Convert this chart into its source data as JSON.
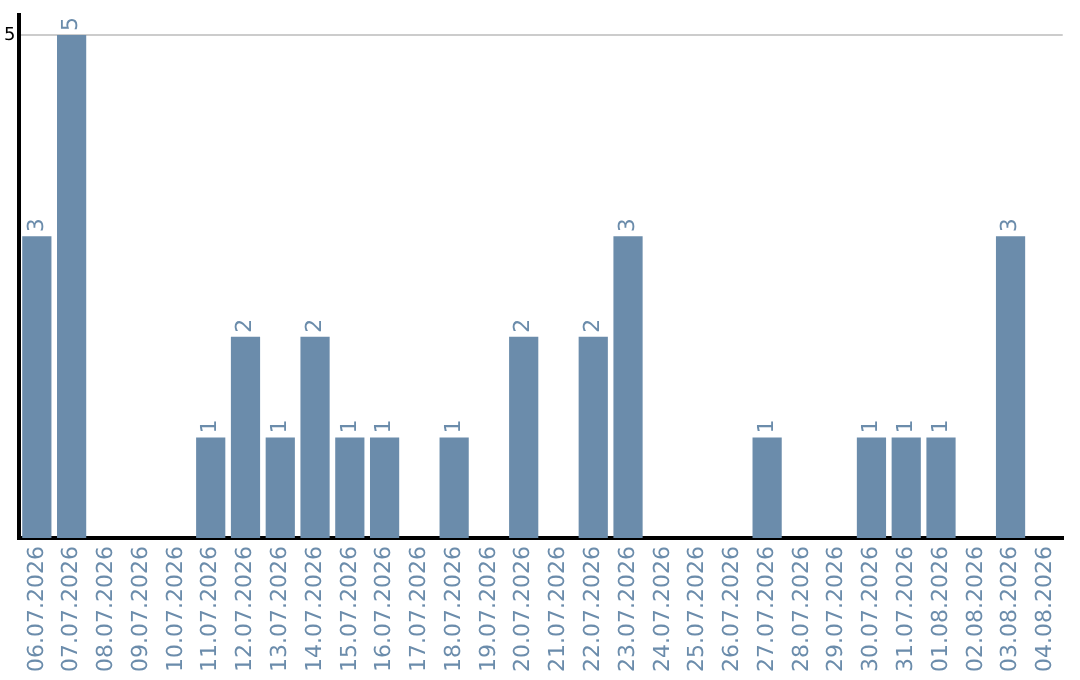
{
  "chart_data": {
    "type": "bar",
    "categories": [
      "06.07.2026",
      "07.07.2026",
      "08.07.2026",
      "09.07.2026",
      "10.07.2026",
      "11.07.2026",
      "12.07.2026",
      "13.07.2026",
      "14.07.2026",
      "15.07.2026",
      "16.07.2026",
      "17.07.2026",
      "18.07.2026",
      "19.07.2026",
      "20.07.2026",
      "21.07.2026",
      "22.07.2026",
      "23.07.2026",
      "24.07.2026",
      "25.07.2026",
      "26.07.2026",
      "27.07.2026",
      "28.07.2026",
      "29.07.2026",
      "30.07.2026",
      "31.07.2026",
      "01.08.2026",
      "02.08.2026",
      "03.08.2026",
      "04.08.2026"
    ],
    "values": [
      3,
      5,
      0,
      0,
      0,
      1,
      2,
      1,
      2,
      1,
      1,
      0,
      1,
      0,
      2,
      0,
      2,
      3,
      0,
      0,
      0,
      1,
      0,
      0,
      1,
      1,
      1,
      0,
      3,
      0
    ],
    "value_labels": [
      "3",
      "5",
      null,
      null,
      null,
      "1",
      "2",
      "1",
      "2",
      "1",
      "1",
      null,
      "1",
      null,
      "2",
      null,
      "2",
      "3",
      null,
      null,
      null,
      "1",
      null,
      null,
      "1",
      "1",
      "1",
      null,
      "3",
      null
    ],
    "color": "#6b8cab",
    "ylim": [
      0,
      5.2
    ],
    "yticks": [
      5
    ],
    "grid": "y",
    "legend": false
  }
}
